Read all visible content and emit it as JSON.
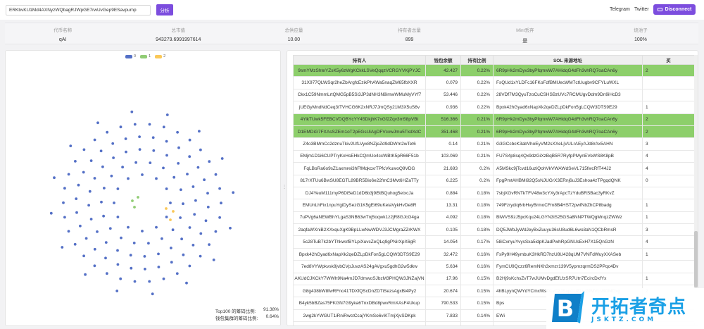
{
  "search": {
    "value": "ERKbvKU1Md4AXNyzWQbagRJWpGE7rwUvGep9ESavpump",
    "button_label": "分析"
  },
  "nav": {
    "telegram": "Telegram",
    "twitter": "Twitter",
    "disconnect": "Disconnect"
  },
  "stats": [
    {
      "label": "代币名称",
      "value": "qAI"
    },
    {
      "label": "总市值",
      "value": "943279.6991997614"
    },
    {
      "label": "总供应量",
      "value": "10.00"
    },
    {
      "label": "持有者总量",
      "value": "899"
    },
    {
      "label": "Mint丢弃",
      "value": "是"
    },
    {
      "label": "烧池子",
      "value": "100%"
    }
  ],
  "chart_data": {
    "type": "scatter",
    "legend": [
      "0",
      "1",
      "2"
    ],
    "legend_colors": [
      "#5470c6",
      "#91cc75",
      "#fac858"
    ],
    "groups": [
      {
        "name": "0",
        "count": 134
      },
      {
        "name": "1",
        "count": 3
      },
      {
        "name": "2",
        "count": 3
      }
    ]
  },
  "footnotes": [
    {
      "label": "Top100 的筹码比例:",
      "value": "91.38%"
    },
    {
      "label": "钱包集群的筹码比例:",
      "value": "0.64%"
    }
  ],
  "table": {
    "headers": [
      "持有人",
      "钱包余额",
      "持有比例",
      "SOL 来源地址",
      "买"
    ],
    "rows": [
      {
        "holder": "9smYMzShteYZsK5y6zWgKCkkLSVeQqqzVCRGYVKjPYJC",
        "balance": "42.427",
        "pct": "0.22%",
        "sol": "6R9pHk2mDyv3byPfqmwW7AHidqG4dFh3vhRQ7oaCAn6y",
        "buy": "2",
        "hl": true
      },
      {
        "holder": "31X977QLWSqr2heZbArgfcEzikPhAWa5naqZM65fbXXR",
        "balance": "0.079",
        "pct": "0.22%",
        "sol": "FsQUd1xYLDFc16FKoFdfBMUecWM7ctUugbv9CFYLuWXL",
        "buy": "",
        "hl": false
      },
      {
        "holder": "Ckx1C59NmmLrtQMG5pB5Si3JP3dNH3N8imwWMuMyVYf7",
        "balance": "53.446",
        "pct": "0.22%",
        "sol": "28VDf7M3QyuTzoCuCSHSBzUVc7RCMUgvDdm9Dn9iHcD3",
        "buy": "",
        "hl": false
      },
      {
        "holder": "jUEGyMndNdCeq3tTVHCG6K2xNRJ7JmQSy21M3X5uS6v",
        "balance": "0.936",
        "pct": "0.22%",
        "sol": "Bpxk42hGyad6xNapXk2qeDZLpDkFon5gLCQW3DTS9E29",
        "buy": "1",
        "hl": false
      },
      {
        "holder": "4YikTUwk5FEBCVDQBYcYY45DkjhK7xGf2Zqv3m58pVBt",
        "balance": "516.366",
        "pct": "0.21%",
        "sol": "6R9pHk2mDyv3byPfqmwW7AHidqG4dFh3vhRQ7oaCAn6y",
        "buy": "2",
        "hl": true
      },
      {
        "holder": "D1EMDiG7FXAsSZEm1oT2pEGsUiAgDFVcxwJmu5TkdXdC",
        "balance": "351.468",
        "pct": "0.21%",
        "sol": "6R9pHk2mDyv3byPfqmwW7AHidqG4dFh3vhRQ7oaCAn6y",
        "buy": "2",
        "hl": true
      },
      {
        "holder": "Z4o3BMmCc2dznuTkiv2UfLVyx8NZjeZd9dDWm2wTet6",
        "balance": "0.14",
        "pct": "0.21%",
        "sol": "G3GCcbcK3abVhoEyVM2sXXeLjVULrAEyAJd8rAx5AHN",
        "buy": "3",
        "hl": false
      },
      {
        "holder": "EMjm1D1i6CUPTryKxHsEHkCQmUo4ccWBtK5pR66F51b",
        "balance": "103.069",
        "pct": "0.21%",
        "sol": "FU7S4p8sq4Qx9dzGiXzBqB5R7RyfpPMynEVeWS8K8pB",
        "buy": "4",
        "hl": false
      },
      {
        "holder": "FqLBoRa6o9sZ1axmrei3hFfMqkcxrTPfcVkuwoQ9VDG",
        "balance": "21.693",
        "pct": "0.2%",
        "sol": "A5MSkc9jTcvd16uziQohVkVWAWdSeVL715fwcRfT44J2",
        "buy": "4",
        "hl": false
      },
      {
        "holder": "817rXTUu6BwSU8EGTL89BR5Bio6e22fmC3Mvt6HZaTTy",
        "balance": "6.225",
        "pct": "0.2%",
        "sol": "FpgPmtAHBMi92Q5sNJUGrX3ERnj6uJ3Eshoa4zTPgqdQNK",
        "buy": "0",
        "hl": false
      },
      {
        "holder": "DJ4YeuM111myP6Di5eD1dD6b3j9i5tBQuhog5etxcJa",
        "balance": "0.884",
        "pct": "0.18%",
        "sol": "7sbjXGvRNTkTFV48w3cYXy3rApcTzYduBRSBac3yRKvZ",
        "buy": "",
        "hl": false
      },
      {
        "holder": "EMUnLhFix1npuYgiDySezG1K5gEi69uKeiaVykHvDe8R",
        "balance": "13.31",
        "pct": "0.18%",
        "sol": "749Fzrydiq6rbHvyBrmoCFm8B4HST2pwfNbZhCP8badg",
        "buy": "1",
        "hl": false
      },
      {
        "holder": "7uPVg6aNEWBhYLgaS3NB63wTnj5oqwk1z2jR8GJcG4ga",
        "balance": "4.092",
        "pct": "0.18%",
        "sol": "BiWVS9zJ5pcKqu24LGYN3iS25GSa8NNPTWQgMnqzZWWz",
        "buy": "1",
        "hl": false
      },
      {
        "holder": "2aqfaWXniB2XXxquXgK9BpLLwNwWDVJ3JCMgraZZrKWX",
        "balance": "0.105",
        "pct": "0.18%",
        "sol": "DQ5JWbJyWdJeyBxZuuyu36sU8ud6L6wo3aN1QCbRmsR",
        "buy": "3",
        "hl": false
      },
      {
        "holder": "5c28TuB7k2bYThkwxfBYLpiXuvcZeQLq9gPNirXpX6gR",
        "balance": "14.054",
        "pct": "0.17%",
        "sol": "58iCxnyuYvysSxa5idpKJadPwhRpGNUsExH7X15QnGzN",
        "buy": "4",
        "hl": false
      },
      {
        "holder": "Bpxk42hGyad6xNapXk2qeDZLpDkFon5gLCQW3DTS9E29",
        "balance": "32.472",
        "pct": "0.16%",
        "sol": "FsPy9H49ymbuK3HkRD7hzU8U428qUM7VNFdWuyXXASeb",
        "buy": "1",
        "hl": false
      },
      {
        "holder": "7ed8VYWpkvsk8jvbCVpJuvzAS24gAVgxu5gdhG2w5dkw",
        "balance": "5.634",
        "pct": "0.16%",
        "sol": "FymCU9Qczz6RemNKh3xmzr139V5ypmzqrmDS2PPqc4Dv",
        "buy": "",
        "hl": false
      },
      {
        "holder": "AKUdCJKCkY7WWh9Na4mJD7dmwoSJbzM3PHQW3JNZajVN",
        "balance": "17.96",
        "pct": "0.15%",
        "sol": "B2Hj9sKchsZvT7wJUMvDgdEfLfzSR7Utn7EcircDxfYx",
        "buy": "1",
        "hl": false
      },
      {
        "holder": "G8g438bW8fwRFnc41TDXfQScDnZDTiSezsAgxBi4Py2",
        "balance": "20.674",
        "pct": "0.15%",
        "sol": "4hBLyynQWYdYCmxWsD1vCzJSap1LiZLw29MVcsBDMDxg",
        "buy": "2",
        "hl": false
      },
      {
        "holder": "B4yk5bBZas75FKGN7G9yka6TnxDBd8pwvRmXAsF4Ukup",
        "balance": "790.533",
        "pct": "0.15%",
        "sol": "Bps",
        "buy": "",
        "hl": false
      },
      {
        "holder": "2wg2kYWGUT1iRniRwctCcajYKmSo6viKTmjXjvSDKpk",
        "balance": "7.833",
        "pct": "0.14%",
        "sol": "EWi",
        "buy": "",
        "hl": false
      },
      {
        "holder": "AeJbAQqyAPfvQHAriZNF2F3r3zyteNF5KvPM9qiNwoB",
        "balance": "2.397",
        "pct": "0.14%",
        "sol": "A9c",
        "buy": "",
        "hl": false
      }
    ]
  },
  "watermark": {
    "logo_letter": "B",
    "title": "开拓者奇点",
    "url": "JSKTZ.COM"
  }
}
